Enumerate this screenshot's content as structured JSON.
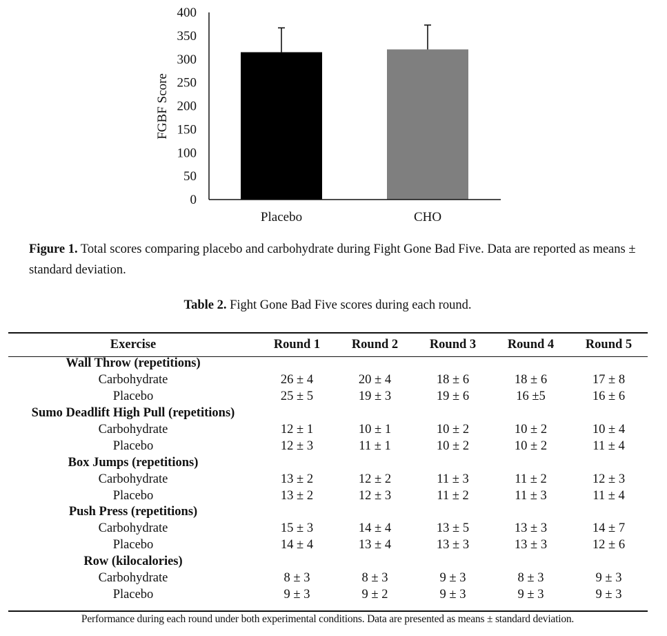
{
  "chart_data": {
    "type": "bar",
    "categories": [
      "Placebo",
      "CHO"
    ],
    "values": [
      315,
      321
    ],
    "errors": [
      52,
      52
    ],
    "colors": [
      "#000000",
      "#7f7f7f"
    ],
    "ylabel": "FGBF Score",
    "ylim": [
      0,
      400
    ],
    "yticks": [
      "0",
      "50",
      "100",
      "150",
      "200",
      "250",
      "300",
      "350",
      "400"
    ]
  },
  "figure": {
    "label": "Figure 1.",
    "text": "Total scores comparing placebo and carbohydrate during Fight Gone Bad Five. Data are reported as means ± standard deviation."
  },
  "table": {
    "label": "Table 2.",
    "title": "Fight Gone Bad Five scores during each round.",
    "headers": [
      "Exercise",
      "Round 1",
      "Round 2",
      "Round 3",
      "Round 4",
      "Round 5"
    ],
    "groups": [
      {
        "name": "Wall Throw (repetitions)",
        "rows": [
          {
            "label": "Carbohydrate",
            "values": [
              "26 ± 4",
              "20 ± 4",
              "18 ± 6",
              "18 ± 6",
              "17 ± 8"
            ]
          },
          {
            "label": "Placebo",
            "values": [
              "25 ± 5",
              "19 ± 3",
              "19 ± 6",
              "16 ±5",
              "16 ± 6"
            ]
          }
        ]
      },
      {
        "name": "Sumo Deadlift High Pull (repetitions)",
        "rows": [
          {
            "label": "Carbohydrate",
            "values": [
              "12 ± 1",
              "10 ± 1",
              "10 ± 2",
              "10 ± 2",
              "10 ± 4"
            ]
          },
          {
            "label": "Placebo",
            "values": [
              "12 ± 3",
              "11 ± 1",
              "10 ± 2",
              "10 ± 2",
              "11 ± 4"
            ]
          }
        ]
      },
      {
        "name": "Box Jumps (repetitions)",
        "rows": [
          {
            "label": "Carbohydrate",
            "values": [
              "13 ± 2",
              "12 ± 2",
              "11 ± 3",
              "11 ± 2",
              "12 ± 3"
            ]
          },
          {
            "label": "Placebo",
            "values": [
              "13 ± 2",
              "12 ± 3",
              "11 ± 2",
              "11 ± 3",
              "11 ± 4"
            ]
          }
        ]
      },
      {
        "name": "Push Press (repetitions)",
        "rows": [
          {
            "label": "Carbohydrate",
            "values": [
              "15 ± 3",
              "14 ± 4",
              "13 ± 5",
              "13 ± 3",
              "14 ± 7"
            ]
          },
          {
            "label": "Placebo",
            "values": [
              "14 ± 4",
              "13 ± 4",
              "13 ± 3",
              "13 ± 3",
              "12 ± 6"
            ]
          }
        ]
      },
      {
        "name": "Row (kilocalories)",
        "rows": [
          {
            "label": "Carbohydrate",
            "values": [
              "8 ± 3",
              "8 ± 3",
              "9 ± 3",
              "8 ± 3",
              "9 ± 3"
            ]
          },
          {
            "label": "Placebo",
            "values": [
              "9 ± 3",
              "9 ± 2",
              "9 ± 3",
              "9 ± 3",
              "9 ± 3"
            ]
          }
        ]
      }
    ],
    "footnote": "Performance during each round under both experimental conditions. Data are presented as means ± standard deviation."
  }
}
